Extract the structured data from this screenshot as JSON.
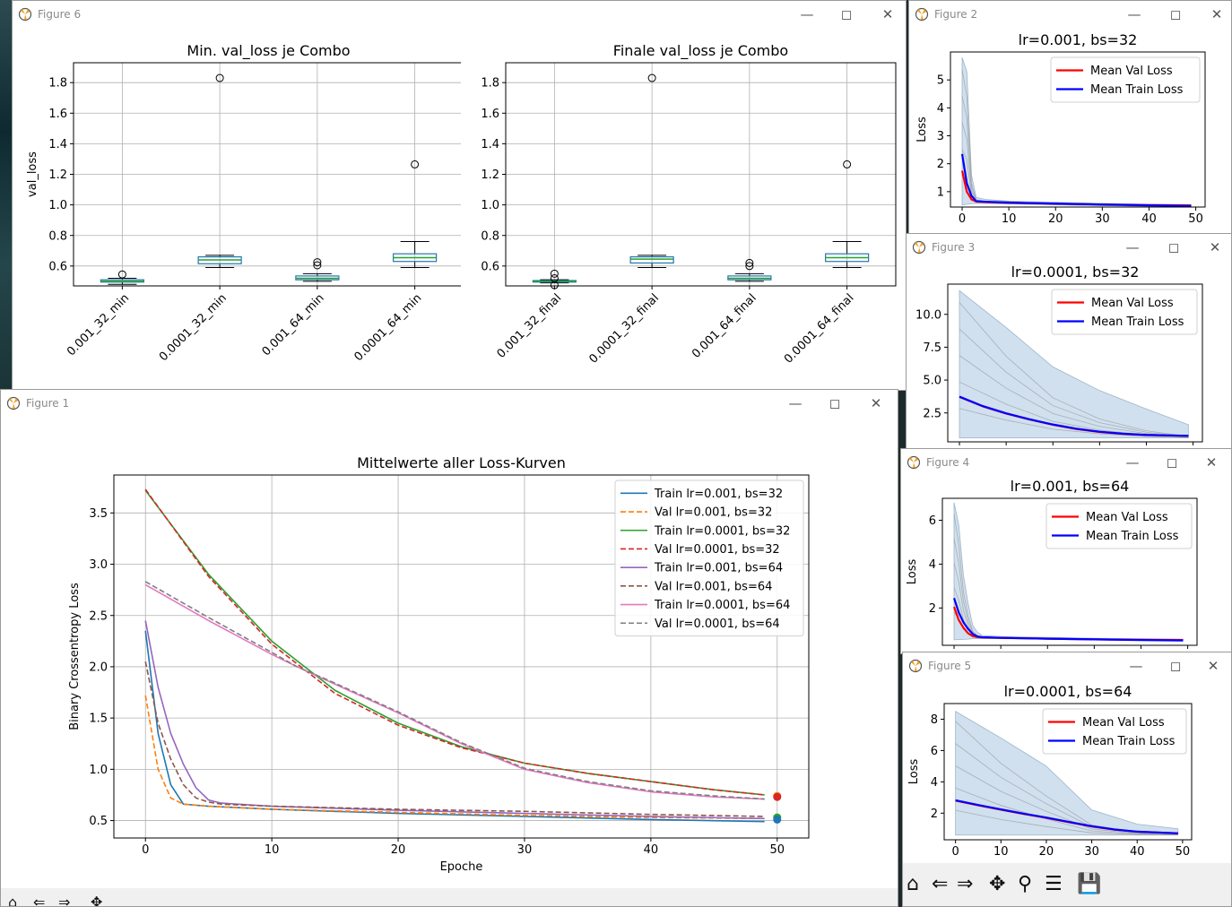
{
  "windows": {
    "fig6": {
      "title": "Figure 6"
    },
    "fig2": {
      "title": "Figure 2"
    },
    "fig3": {
      "title": "Figure 3"
    },
    "fig4": {
      "title": "Figure 4"
    },
    "fig5": {
      "title": "Figure 5"
    },
    "fig1": {
      "title": "Figure 1"
    }
  },
  "icons": [
    "matplotlib-icon",
    "minimize-icon",
    "maximize-icon",
    "close-icon",
    "home-icon",
    "back-icon",
    "forward-icon",
    "pan-icon",
    "zoom-icon",
    "configure-icon",
    "save-icon"
  ],
  "colors": {
    "c0": "#1f77b4",
    "c1": "#ff7f0e",
    "c2": "#2ca02c",
    "c3": "#d62728",
    "c4": "#9467bd",
    "c5": "#8c564b",
    "c6": "#e377c2",
    "c7": "#7f7f7f",
    "median": "#2ca02c",
    "boxes": "#1f77b4",
    "band": "#a9c7e0",
    "meanVal": "#ff0000",
    "meanTrain": "#0000ff"
  },
  "chart_data": [
    {
      "id": "box-min",
      "type": "box",
      "title": "Min. val_loss je Combo",
      "ylabel": "val_loss",
      "xlabel": "",
      "ylim": [
        0.47,
        1.93
      ],
      "yticks": [
        0.6,
        0.8,
        1.0,
        1.2,
        1.4,
        1.6,
        1.8
      ],
      "categories": [
        "0.001_32_min",
        "0.0001_32_min",
        "0.001_64_min",
        "0.0001_64_min"
      ],
      "boxes": [
        {
          "whislo": 0.48,
          "q1": 0.495,
          "median": 0.5,
          "q3": 0.51,
          "whishi": 0.52,
          "fliers": [
            0.545
          ]
        },
        {
          "whislo": 0.59,
          "q1": 0.615,
          "median": 0.64,
          "q3": 0.66,
          "whishi": 0.67,
          "fliers": [
            1.83
          ]
        },
        {
          "whislo": 0.5,
          "q1": 0.51,
          "median": 0.52,
          "q3": 0.535,
          "whishi": 0.55,
          "fliers": [
            0.605,
            0.625
          ]
        },
        {
          "whislo": 0.59,
          "q1": 0.63,
          "median": 0.655,
          "q3": 0.68,
          "whishi": 0.76,
          "fliers": [
            1.265
          ]
        }
      ]
    },
    {
      "id": "box-final",
      "type": "box",
      "title": "Finale val_loss je Combo",
      "ylabel": "",
      "xlabel": "",
      "ylim": [
        0.47,
        1.93
      ],
      "yticks": [
        0.6,
        0.8,
        1.0,
        1.2,
        1.4,
        1.6,
        1.8
      ],
      "categories": [
        "0.001_32_final",
        "0.0001_32_final",
        "0.001_64_final",
        "0.0001_64_final"
      ],
      "boxes": [
        {
          "whislo": 0.49,
          "q1": 0.495,
          "median": 0.5,
          "q3": 0.505,
          "whishi": 0.51,
          "fliers": [
            0.475,
            0.52,
            0.55
          ]
        },
        {
          "whislo": 0.59,
          "q1": 0.62,
          "median": 0.645,
          "q3": 0.66,
          "whishi": 0.67,
          "fliers": [
            1.83
          ]
        },
        {
          "whislo": 0.5,
          "q1": 0.51,
          "median": 0.52,
          "q3": 0.535,
          "whishi": 0.55,
          "fliers": [
            0.6,
            0.62
          ]
        },
        {
          "whislo": 0.59,
          "q1": 0.63,
          "median": 0.655,
          "q3": 0.68,
          "whishi": 0.76,
          "fliers": [
            1.265
          ]
        }
      ]
    },
    {
      "id": "fig2-plot",
      "type": "line",
      "title": "lr=0.001, bs=32",
      "ylabel": "Loss",
      "xlabel": "",
      "xlim": [
        -2.5,
        52
      ],
      "ylim": [
        0.45,
        6.0
      ],
      "xticks": [
        0,
        10,
        20,
        30,
        40,
        50
      ],
      "yticks": [
        1,
        2,
        3,
        4,
        5
      ],
      "legend": {
        "position": "top-right",
        "entries": [
          "Mean Val Loss",
          "Mean Train Loss"
        ]
      },
      "band": {
        "x": [
          0,
          1,
          2,
          3,
          5,
          10,
          20,
          30,
          40,
          49
        ],
        "lo": [
          0.52,
          0.55,
          0.57,
          0.58,
          0.58,
          0.56,
          0.53,
          0.5,
          0.48,
          0.47
        ],
        "hi": [
          5.8,
          5.3,
          1.6,
          0.8,
          0.72,
          0.66,
          0.62,
          0.58,
          0.55,
          0.53
        ]
      },
      "series": [
        {
          "name": "Mean Val Loss",
          "x": [
            0,
            1,
            2,
            3,
            5,
            10,
            20,
            30,
            40,
            49
          ],
          "y": [
            1.75,
            1.0,
            0.72,
            0.65,
            0.63,
            0.6,
            0.57,
            0.54,
            0.52,
            0.51
          ]
        },
        {
          "name": "Mean Train Loss",
          "x": [
            0,
            1,
            2,
            3,
            5,
            10,
            20,
            30,
            40,
            49
          ],
          "y": [
            2.35,
            1.3,
            0.85,
            0.66,
            0.64,
            0.61,
            0.57,
            0.54,
            0.51,
            0.49
          ]
        }
      ]
    },
    {
      "id": "fig3-plot",
      "type": "line",
      "title": "lr=0.0001, bs=32",
      "ylabel": "",
      "xlabel": "",
      "xlim": [
        -2.5,
        52
      ],
      "ylim": [
        0.3,
        12.3
      ],
      "xticks": [
        0,
        10,
        20,
        30,
        40,
        50
      ],
      "yticks": [
        2.5,
        5.0,
        7.5,
        10.0
      ],
      "legend": {
        "position": "top-right",
        "entries": [
          "Mean Val Loss",
          "Mean Train Loss"
        ]
      },
      "band": {
        "x": [
          0,
          10,
          20,
          30,
          40,
          49
        ],
        "lo": [
          0.6,
          0.6,
          0.6,
          0.6,
          0.6,
          0.6
        ],
        "hi": [
          11.8,
          9.0,
          6.0,
          4.2,
          2.8,
          1.6
        ]
      },
      "series": [
        {
          "name": "Mean Val Loss",
          "x": [
            0,
            5,
            10,
            15,
            20,
            25,
            30,
            35,
            40,
            45,
            49
          ],
          "y": [
            3.72,
            3.0,
            2.45,
            2.0,
            1.6,
            1.28,
            1.05,
            0.9,
            0.82,
            0.78,
            0.76
          ]
        },
        {
          "name": "Mean Train Loss",
          "x": [
            0,
            5,
            10,
            15,
            20,
            25,
            30,
            35,
            40,
            45,
            49
          ],
          "y": [
            3.74,
            3.02,
            2.47,
            2.02,
            1.62,
            1.3,
            1.07,
            0.92,
            0.83,
            0.79,
            0.76
          ]
        }
      ]
    },
    {
      "id": "fig4-plot",
      "type": "line",
      "title": "lr=0.001, bs=64",
      "ylabel": "Loss",
      "xlabel": "",
      "xlim": [
        -2.5,
        52
      ],
      "ylim": [
        0.3,
        7.0
      ],
      "xticks": [
        0,
        10,
        20,
        30,
        40,
        50
      ],
      "yticks": [
        2,
        4,
        6
      ],
      "legend": {
        "position": "top-right",
        "entries": [
          "Mean Val Loss",
          "Mean Train Loss"
        ]
      },
      "band": {
        "x": [
          0,
          1,
          2,
          3,
          4,
          5,
          6,
          10,
          20,
          30,
          40,
          49
        ],
        "lo": [
          0.55,
          0.56,
          0.57,
          0.58,
          0.6,
          0.6,
          0.6,
          0.6,
          0.58,
          0.56,
          0.54,
          0.53
        ],
        "hi": [
          6.8,
          5.8,
          3.5,
          2.2,
          1.2,
          0.9,
          0.75,
          0.7,
          0.66,
          0.62,
          0.6,
          0.58
        ]
      },
      "series": [
        {
          "name": "Mean Val Loss",
          "x": [
            0,
            1,
            2,
            3,
            4,
            5,
            6,
            10,
            20,
            30,
            40,
            49
          ],
          "y": [
            2.05,
            1.45,
            1.1,
            0.85,
            0.72,
            0.68,
            0.66,
            0.64,
            0.6,
            0.57,
            0.55,
            0.54
          ]
        },
        {
          "name": "Mean Train Loss",
          "x": [
            0,
            1,
            2,
            3,
            4,
            5,
            6,
            10,
            20,
            30,
            40,
            49
          ],
          "y": [
            2.45,
            1.8,
            1.35,
            1.05,
            0.82,
            0.7,
            0.67,
            0.64,
            0.6,
            0.57,
            0.54,
            0.52
          ]
        }
      ]
    },
    {
      "id": "fig5-plot",
      "type": "line",
      "title": "lr=0.0001, bs=64",
      "ylabel": "Loss",
      "xlabel": "",
      "xlim": [
        -2.5,
        52
      ],
      "ylim": [
        0.3,
        9.0
      ],
      "xticks": [
        0,
        10,
        20,
        30,
        40,
        50
      ],
      "yticks": [
        2,
        4,
        6,
        8
      ],
      "legend": {
        "position": "top-right",
        "entries": [
          "Mean Val Loss",
          "Mean Train Loss"
        ]
      },
      "band": {
        "x": [
          0,
          10,
          20,
          30,
          40,
          49
        ],
        "lo": [
          0.6,
          0.6,
          0.6,
          0.6,
          0.6,
          0.6
        ],
        "hi": [
          8.5,
          6.8,
          5.0,
          2.2,
          1.3,
          1.0
        ]
      },
      "series": [
        {
          "name": "Mean Val Loss",
          "x": [
            0,
            5,
            10,
            15,
            20,
            25,
            30,
            35,
            40,
            45,
            49
          ],
          "y": [
            2.8,
            2.5,
            2.22,
            1.95,
            1.7,
            1.42,
            1.15,
            0.95,
            0.82,
            0.76,
            0.72
          ]
        },
        {
          "name": "Mean Train Loss",
          "x": [
            0,
            5,
            10,
            15,
            20,
            25,
            30,
            35,
            40,
            45,
            49
          ],
          "y": [
            2.82,
            2.52,
            2.24,
            1.97,
            1.72,
            1.44,
            1.17,
            0.96,
            0.82,
            0.76,
            0.71
          ]
        }
      ]
    },
    {
      "id": "fig1-plot",
      "type": "line",
      "title": "Mittelwerte aller Loss-Kurven",
      "xlabel": "Epoche",
      "ylabel": "Binary Crossentropy Loss",
      "xlim": [
        -2.5,
        52.5
      ],
      "ylim": [
        0.33,
        3.87
      ],
      "xticks": [
        0,
        10,
        20,
        30,
        40,
        50
      ],
      "yticks": [
        0.5,
        1.0,
        1.5,
        2.0,
        2.5,
        3.0,
        3.5
      ],
      "legend": {
        "position": "top-right"
      },
      "series": [
        {
          "name": "Train lr=0.001, bs=32",
          "color": "c0",
          "dash": false,
          "x": [
            0,
            1,
            2,
            3,
            5,
            10,
            20,
            30,
            40,
            49
          ],
          "y": [
            2.35,
            1.35,
            0.85,
            0.66,
            0.64,
            0.61,
            0.57,
            0.54,
            0.51,
            0.49
          ]
        },
        {
          "name": "Val   lr=0.001, bs=32",
          "color": "c1",
          "dash": true,
          "x": [
            0,
            1,
            2,
            3,
            5,
            10,
            20,
            30,
            40,
            49
          ],
          "y": [
            1.72,
            1.0,
            0.72,
            0.66,
            0.64,
            0.61,
            0.58,
            0.55,
            0.53,
            0.52
          ]
        },
        {
          "name": "Train lr=0.0001, bs=32",
          "color": "c2",
          "dash": false,
          "x": [
            0,
            5,
            10,
            15,
            20,
            25,
            30,
            35,
            40,
            45,
            49
          ],
          "y": [
            3.72,
            2.9,
            2.25,
            1.77,
            1.45,
            1.22,
            1.06,
            0.96,
            0.88,
            0.8,
            0.75
          ]
        },
        {
          "name": "Val   lr=0.0001, bs=32",
          "color": "c3",
          "dash": true,
          "x": [
            0,
            5,
            10,
            15,
            20,
            25,
            30,
            35,
            40,
            45,
            49
          ],
          "y": [
            3.73,
            2.88,
            2.22,
            1.74,
            1.43,
            1.21,
            1.06,
            0.96,
            0.88,
            0.8,
            0.75
          ]
        },
        {
          "name": "Train lr=0.001, bs=64",
          "color": "c4",
          "dash": false,
          "x": [
            0,
            1,
            2,
            3,
            4,
            5,
            6,
            10,
            20,
            30,
            40,
            49
          ],
          "y": [
            2.45,
            1.8,
            1.35,
            1.05,
            0.82,
            0.7,
            0.67,
            0.64,
            0.6,
            0.57,
            0.54,
            0.52
          ]
        },
        {
          "name": "Val   lr=0.001, bs=64",
          "color": "c5",
          "dash": true,
          "x": [
            0,
            1,
            2,
            3,
            4,
            5,
            6,
            10,
            20,
            30,
            40,
            49
          ],
          "y": [
            2.05,
            1.45,
            1.1,
            0.85,
            0.72,
            0.68,
            0.66,
            0.64,
            0.61,
            0.59,
            0.56,
            0.54
          ]
        },
        {
          "name": "Train lr=0.0001, bs=64",
          "color": "c6",
          "dash": false,
          "x": [
            0,
            5,
            10,
            12,
            15,
            20,
            25,
            30,
            35,
            40,
            45,
            49
          ],
          "y": [
            2.8,
            2.45,
            2.12,
            2.0,
            1.83,
            1.55,
            1.25,
            1.0,
            0.87,
            0.78,
            0.73,
            0.71
          ]
        },
        {
          "name": "Val   lr=0.0001, bs=64",
          "color": "c7",
          "dash": true,
          "x": [
            0,
            5,
            10,
            12,
            15,
            20,
            25,
            30,
            35,
            40,
            45,
            49
          ],
          "y": [
            2.83,
            2.48,
            2.14,
            2.0,
            1.84,
            1.56,
            1.26,
            1.01,
            0.88,
            0.79,
            0.74,
            0.71
          ]
        }
      ],
      "markers": [
        {
          "x": 50,
          "y": 0.74,
          "color": "c1"
        },
        {
          "x": 50,
          "y": 0.73,
          "color": "c3"
        },
        {
          "x": 50,
          "y": 0.53,
          "color": "c2"
        },
        {
          "x": 50,
          "y": 0.51,
          "color": "c0"
        }
      ]
    }
  ]
}
